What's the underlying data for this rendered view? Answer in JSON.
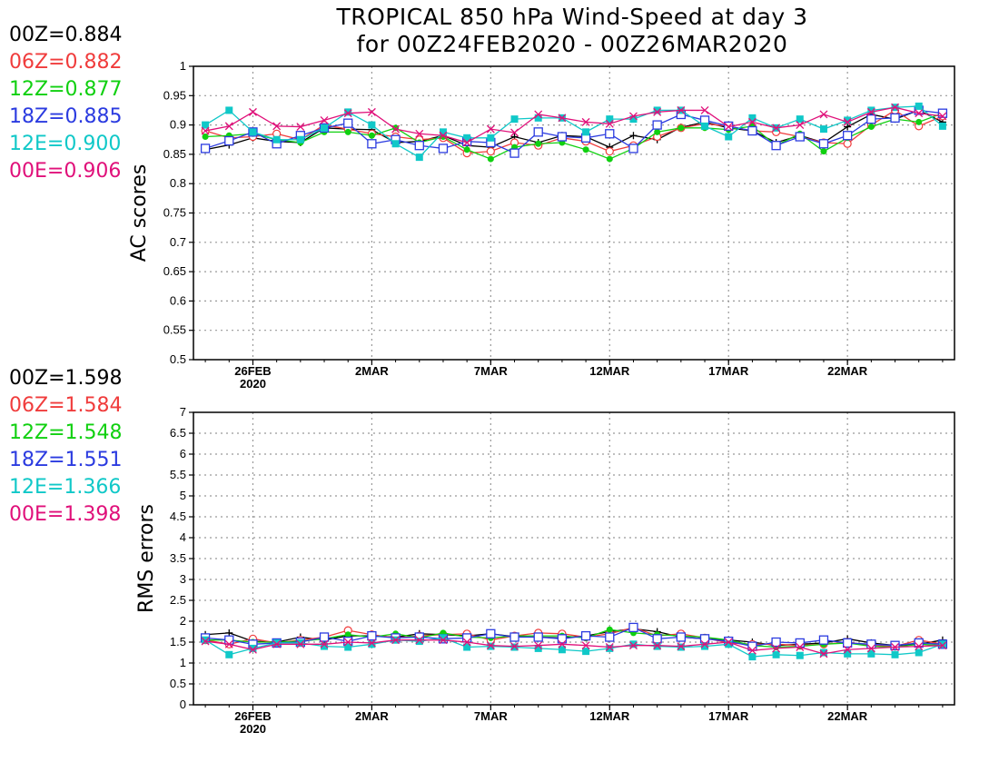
{
  "title_line1": "TROPICAL 850 hPa Wind-Speed at day 3",
  "title_line2": "for 00Z24FEB2020 - 00Z26MAR2020",
  "legend_ac": [
    {
      "label": "00Z=0.884",
      "color": "#000000"
    },
    {
      "label": "06Z=0.882",
      "color": "#f03c3c"
    },
    {
      "label": "12Z=0.877",
      "color": "#10d010"
    },
    {
      "label": "18Z=0.885",
      "color": "#2b3be0"
    },
    {
      "label": "12E=0.900",
      "color": "#10c8c8"
    },
    {
      "label": "00E=0.906",
      "color": "#e0107a"
    }
  ],
  "legend_rms": [
    {
      "label": "00Z=1.598",
      "color": "#000000"
    },
    {
      "label": "06Z=1.584",
      "color": "#f03c3c"
    },
    {
      "label": "12Z=1.548",
      "color": "#10d010"
    },
    {
      "label": "18Z=1.551",
      "color": "#2b3be0"
    },
    {
      "label": "12E=1.366",
      "color": "#10c8c8"
    },
    {
      "label": "00E=1.398",
      "color": "#e0107a"
    }
  ],
  "chart_data": [
    {
      "type": "line",
      "ylabel": "AC scores",
      "ylim": [
        0.5,
        1.0
      ],
      "yticks": [
        "0.5",
        "0.55",
        "0.6",
        "0.65",
        "0.7",
        "0.75",
        "0.8",
        "0.85",
        "0.9",
        "0.95",
        "1"
      ],
      "x_dates": [
        "24FEB",
        "25FEB",
        "26FEB",
        "27FEB",
        "28FEB",
        "29FEB",
        "1MAR",
        "2MAR",
        "3MAR",
        "4MAR",
        "5MAR",
        "6MAR",
        "7MAR",
        "8MAR",
        "9MAR",
        "10MAR",
        "11MAR",
        "12MAR",
        "13MAR",
        "14MAR",
        "15MAR",
        "16MAR",
        "17MAR",
        "18MAR",
        "19MAR",
        "20MAR",
        "21MAR",
        "22MAR",
        "23MAR",
        "24MAR",
        "25MAR",
        "26MAR"
      ],
      "xtick_labels": [
        "26FEB",
        "2MAR",
        "7MAR",
        "12MAR",
        "17MAR",
        "22MAR"
      ],
      "xtick_sublabel": "2020",
      "grid": true,
      "series": [
        {
          "name": "00Z",
          "color": "#000000",
          "marker": "plus",
          "values": [
            0.858,
            0.866,
            0.878,
            0.872,
            0.87,
            0.895,
            0.893,
            0.892,
            0.87,
            0.872,
            0.882,
            0.865,
            0.862,
            0.88,
            0.87,
            0.882,
            0.88,
            0.862,
            0.882,
            0.875,
            0.896,
            0.905,
            0.895,
            0.89,
            0.87,
            0.882,
            0.87,
            0.897,
            0.918,
            0.91,
            0.925,
            0.905
          ]
        },
        {
          "name": "06Z",
          "color": "#f03c3c",
          "marker": "circle",
          "values": [
            0.89,
            0.878,
            0.88,
            0.885,
            0.875,
            0.9,
            0.893,
            0.885,
            0.88,
            0.875,
            0.878,
            0.852,
            0.855,
            0.87,
            0.865,
            0.878,
            0.872,
            0.855,
            0.865,
            0.88,
            0.895,
            0.902,
            0.898,
            0.89,
            0.888,
            0.88,
            0.87,
            0.868,
            0.9,
            0.925,
            0.898,
            0.915
          ]
        },
        {
          "name": "12Z",
          "color": "#10d010",
          "marker": "dot",
          "values": [
            0.88,
            0.882,
            0.885,
            0.875,
            0.87,
            0.888,
            0.888,
            0.882,
            0.895,
            0.87,
            0.88,
            0.858,
            0.842,
            0.862,
            0.868,
            0.87,
            0.858,
            0.842,
            0.86,
            0.888,
            0.895,
            0.895,
            0.892,
            0.898,
            0.865,
            0.885,
            0.855,
            0.878,
            0.897,
            0.91,
            0.905,
            0.92
          ]
        },
        {
          "name": "18Z",
          "color": "#2b3be0",
          "marker": "square",
          "values": [
            0.86,
            0.873,
            0.888,
            0.868,
            0.882,
            0.895,
            0.903,
            0.868,
            0.875,
            0.865,
            0.86,
            0.872,
            0.87,
            0.852,
            0.888,
            0.88,
            0.878,
            0.885,
            0.86,
            0.9,
            0.918,
            0.908,
            0.898,
            0.89,
            0.865,
            0.88,
            0.868,
            0.882,
            0.91,
            0.912,
            0.925,
            0.92
          ]
        },
        {
          "name": "12E",
          "color": "#10c8c8",
          "marker": "fsquare",
          "values": [
            0.9,
            0.925,
            0.888,
            0.875,
            0.875,
            0.895,
            0.922,
            0.9,
            0.868,
            0.845,
            0.888,
            0.878,
            0.878,
            0.91,
            0.912,
            0.912,
            0.888,
            0.91,
            0.91,
            0.925,
            0.925,
            0.898,
            0.88,
            0.912,
            0.895,
            0.91,
            0.893,
            0.908,
            0.925,
            0.93,
            0.932,
            0.898
          ]
        },
        {
          "name": "00E",
          "color": "#e0107a",
          "marker": "x",
          "values": [
            0.89,
            0.898,
            0.922,
            0.898,
            0.897,
            0.908,
            0.92,
            0.922,
            0.893,
            0.885,
            0.882,
            0.87,
            0.893,
            0.887,
            0.918,
            0.912,
            0.905,
            0.902,
            0.915,
            0.922,
            0.925,
            0.925,
            0.897,
            0.905,
            0.895,
            0.9,
            0.918,
            0.905,
            0.922,
            0.93,
            0.92,
            0.915
          ]
        }
      ]
    },
    {
      "type": "line",
      "ylabel": "RMS errors",
      "ylim": [
        0,
        7
      ],
      "yticks": [
        "0",
        "0.5",
        "1",
        "1.5",
        "2",
        "2.5",
        "3",
        "3.5",
        "4",
        "4.5",
        "5",
        "5.5",
        "6",
        "6.5",
        "7"
      ],
      "x_dates": [
        "24FEB",
        "25FEB",
        "26FEB",
        "27FEB",
        "28FEB",
        "29FEB",
        "1MAR",
        "2MAR",
        "3MAR",
        "4MAR",
        "5MAR",
        "6MAR",
        "7MAR",
        "8MAR",
        "9MAR",
        "10MAR",
        "11MAR",
        "12MAR",
        "13MAR",
        "14MAR",
        "15MAR",
        "16MAR",
        "17MAR",
        "18MAR",
        "19MAR",
        "20MAR",
        "21MAR",
        "22MAR",
        "23MAR",
        "24MAR",
        "25MAR",
        "26MAR"
      ],
      "xtick_labels": [
        "26FEB",
        "2MAR",
        "7MAR",
        "12MAR",
        "17MAR",
        "22MAR"
      ],
      "xtick_sublabel": "2020",
      "grid": true,
      "series": [
        {
          "name": "00Z",
          "color": "#000000",
          "marker": "plus",
          "values": [
            1.68,
            1.72,
            1.52,
            1.5,
            1.62,
            1.55,
            1.65,
            1.65,
            1.62,
            1.7,
            1.68,
            1.65,
            1.7,
            1.63,
            1.62,
            1.6,
            1.65,
            1.75,
            1.82,
            1.75,
            1.62,
            1.58,
            1.55,
            1.5,
            1.42,
            1.45,
            1.48,
            1.58,
            1.48,
            1.42,
            1.45,
            1.55
          ]
        },
        {
          "name": "06Z",
          "color": "#f03c3c",
          "marker": "circle",
          "values": [
            1.55,
            1.45,
            1.58,
            1.48,
            1.55,
            1.62,
            1.78,
            1.68,
            1.6,
            1.65,
            1.68,
            1.7,
            1.55,
            1.65,
            1.72,
            1.7,
            1.62,
            1.7,
            1.85,
            1.65,
            1.7,
            1.6,
            1.48,
            1.45,
            1.45,
            1.42,
            1.45,
            1.5,
            1.42,
            1.4,
            1.55,
            1.45
          ]
        },
        {
          "name": "12Z",
          "color": "#10d010",
          "marker": "dot",
          "values": [
            1.55,
            1.55,
            1.5,
            1.5,
            1.52,
            1.58,
            1.68,
            1.62,
            1.7,
            1.6,
            1.72,
            1.62,
            1.6,
            1.65,
            1.65,
            1.65,
            1.6,
            1.8,
            1.72,
            1.68,
            1.65,
            1.62,
            1.55,
            1.42,
            1.38,
            1.4,
            1.45,
            1.48,
            1.4,
            1.38,
            1.45,
            1.42
          ]
        },
        {
          "name": "18Z",
          "color": "#2b3be0",
          "marker": "square",
          "values": [
            1.6,
            1.55,
            1.45,
            1.48,
            1.5,
            1.62,
            1.52,
            1.65,
            1.6,
            1.62,
            1.58,
            1.6,
            1.7,
            1.62,
            1.62,
            1.58,
            1.65,
            1.62,
            1.85,
            1.58,
            1.62,
            1.58,
            1.52,
            1.4,
            1.5,
            1.48,
            1.55,
            1.48,
            1.45,
            1.42,
            1.48,
            1.45
          ]
        },
        {
          "name": "12E",
          "color": "#10c8c8",
          "marker": "fsquare",
          "values": [
            1.55,
            1.2,
            1.35,
            1.48,
            1.48,
            1.4,
            1.38,
            1.45,
            1.55,
            1.52,
            1.6,
            1.38,
            1.4,
            1.38,
            1.35,
            1.32,
            1.28,
            1.35,
            1.45,
            1.4,
            1.38,
            1.4,
            1.45,
            1.15,
            1.2,
            1.18,
            1.25,
            1.22,
            1.22,
            1.2,
            1.25,
            1.45
          ]
        },
        {
          "name": "00E",
          "color": "#e0107a",
          "marker": "x",
          "values": [
            1.52,
            1.45,
            1.32,
            1.45,
            1.45,
            1.45,
            1.5,
            1.48,
            1.55,
            1.55,
            1.55,
            1.5,
            1.42,
            1.4,
            1.42,
            1.45,
            1.42,
            1.38,
            1.42,
            1.42,
            1.4,
            1.45,
            1.5,
            1.3,
            1.35,
            1.38,
            1.22,
            1.32,
            1.35,
            1.38,
            1.4,
            1.42
          ]
        }
      ]
    }
  ]
}
